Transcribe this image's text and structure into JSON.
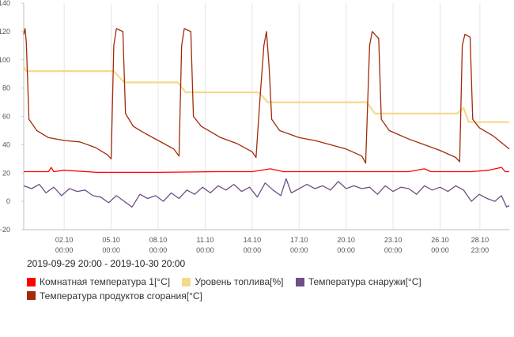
{
  "chart_data": {
    "type": "line",
    "xlabel": "",
    "ylabel": "",
    "ylim": [
      -20,
      140
    ],
    "yticks": [
      -20,
      0,
      20,
      40,
      60,
      80,
      100,
      120,
      140
    ],
    "xlim": [
      "2019-09-29 20:00",
      "2019-10-30 20:00"
    ],
    "xticks": [
      {
        "at": "2019-10-02 10:00",
        "label_top": "02.10",
        "label_bottom": "00:00"
      },
      {
        "at": "2019-10-05 10:00",
        "label_top": "05.10",
        "label_bottom": "00:00"
      },
      {
        "at": "2019-10-08 10:00",
        "label_top": "08.10",
        "label_bottom": "00:00"
      },
      {
        "at": "2019-10-11 10:00",
        "label_top": "11.10",
        "label_bottom": "00:00"
      },
      {
        "at": "2019-10-14 10:00",
        "label_top": "14.10",
        "label_bottom": "00:00"
      },
      {
        "at": "2019-10-17 10:00",
        "label_top": "17.10",
        "label_bottom": "00:00"
      },
      {
        "at": "2019-10-20 10:00",
        "label_top": "20.10",
        "label_bottom": "00:00"
      },
      {
        "at": "2019-10-23 10:00",
        "label_top": "23.10",
        "label_bottom": "00:00"
      },
      {
        "at": "2019-10-26 10:00",
        "label_top": "26.10",
        "label_bottom": "00:00"
      },
      {
        "at": "2019-10-28 23:00",
        "label_top": "28.10",
        "label_bottom": "23:00"
      }
    ],
    "grid": true,
    "legend_position": "bottom",
    "range_label": "2019-09-29 20:00 - 2019-10-30 20:00",
    "series": [
      {
        "name": "Комнатная температура 1[°C]",
        "color": "#ff0000",
        "points": [
          [
            "2019-09-29 20:00",
            21
          ],
          [
            "2019-10-01 10:00",
            21
          ],
          [
            "2019-10-01 14:00",
            24
          ],
          [
            "2019-10-01 18:00",
            21
          ],
          [
            "2019-10-02 10:00",
            22
          ],
          [
            "2019-10-04 12:00",
            20.5
          ],
          [
            "2019-10-08 10:00",
            20.5
          ],
          [
            "2019-10-12 10:00",
            21
          ],
          [
            "2019-10-14 10:00",
            21
          ],
          [
            "2019-10-15 14:00",
            23
          ],
          [
            "2019-10-16 10:00",
            21
          ],
          [
            "2019-10-20 10:00",
            21
          ],
          [
            "2019-10-24 10:00",
            21
          ],
          [
            "2019-10-25 10:00",
            23
          ],
          [
            "2019-10-25 20:00",
            21
          ],
          [
            "2019-10-28 10:00",
            21
          ],
          [
            "2019-10-29 12:00",
            22
          ],
          [
            "2019-10-30 08:00",
            24
          ],
          [
            "2019-10-30 14:00",
            21
          ],
          [
            "2019-10-30 20:00",
            21
          ]
        ]
      },
      {
        "name": "Уровень топлива[%]",
        "color": "#f5d98c",
        "points": [
          [
            "2019-09-29 20:00",
            95
          ],
          [
            "2019-09-30 00:00",
            92
          ],
          [
            "2019-10-05 14:00",
            92
          ],
          [
            "2019-10-06 06:00",
            84
          ],
          [
            "2019-10-09 16:00",
            84
          ],
          [
            "2019-10-10 04:00",
            77
          ],
          [
            "2019-10-14 20:00",
            77
          ],
          [
            "2019-10-15 10:00",
            70
          ],
          [
            "2019-10-21 18:00",
            70
          ],
          [
            "2019-10-22 06:00",
            62
          ],
          [
            "2019-10-27 12:00",
            62
          ],
          [
            "2019-10-27 22:00",
            66
          ],
          [
            "2019-10-28 06:00",
            56
          ],
          [
            "2019-10-30 20:00",
            56
          ]
        ]
      },
      {
        "name": "Температура снаружи[°C]",
        "color": "#6f4f86",
        "points": [
          [
            "2019-09-29 20:00",
            11
          ],
          [
            "2019-09-30 08:00",
            9
          ],
          [
            "2019-09-30 20:00",
            12
          ],
          [
            "2019-10-01 06:00",
            6
          ],
          [
            "2019-10-01 18:00",
            10
          ],
          [
            "2019-10-02 06:00",
            4
          ],
          [
            "2019-10-02 18:00",
            9
          ],
          [
            "2019-10-03 06:00",
            7
          ],
          [
            "2019-10-03 18:00",
            8
          ],
          [
            "2019-10-04 06:00",
            4
          ],
          [
            "2019-10-04 18:00",
            3
          ],
          [
            "2019-10-05 06:00",
            -1
          ],
          [
            "2019-10-05 18:00",
            4
          ],
          [
            "2019-10-06 06:00",
            0
          ],
          [
            "2019-10-06 18:00",
            -4
          ],
          [
            "2019-10-07 06:00",
            5
          ],
          [
            "2019-10-07 18:00",
            2
          ],
          [
            "2019-10-08 06:00",
            4
          ],
          [
            "2019-10-08 18:00",
            0
          ],
          [
            "2019-10-09 06:00",
            6
          ],
          [
            "2019-10-09 18:00",
            2
          ],
          [
            "2019-10-10 06:00",
            8
          ],
          [
            "2019-10-10 18:00",
            5
          ],
          [
            "2019-10-11 06:00",
            10
          ],
          [
            "2019-10-11 18:00",
            6
          ],
          [
            "2019-10-12 06:00",
            11
          ],
          [
            "2019-10-12 18:00",
            8
          ],
          [
            "2019-10-13 06:00",
            12
          ],
          [
            "2019-10-13 18:00",
            7
          ],
          [
            "2019-10-14 06:00",
            10
          ],
          [
            "2019-10-14 18:00",
            3
          ],
          [
            "2019-10-15 06:00",
            13
          ],
          [
            "2019-10-15 18:00",
            8
          ],
          [
            "2019-10-16 06:00",
            4
          ],
          [
            "2019-10-16 14:00",
            16
          ],
          [
            "2019-10-16 22:00",
            6
          ],
          [
            "2019-10-17 10:00",
            9
          ],
          [
            "2019-10-17 22:00",
            12
          ],
          [
            "2019-10-18 10:00",
            9
          ],
          [
            "2019-10-18 22:00",
            11
          ],
          [
            "2019-10-19 10:00",
            8
          ],
          [
            "2019-10-19 22:00",
            14
          ],
          [
            "2019-10-20 10:00",
            9
          ],
          [
            "2019-10-20 22:00",
            11
          ],
          [
            "2019-10-21 10:00",
            9
          ],
          [
            "2019-10-21 22:00",
            10
          ],
          [
            "2019-10-22 10:00",
            5
          ],
          [
            "2019-10-22 22:00",
            11
          ],
          [
            "2019-10-23 10:00",
            7
          ],
          [
            "2019-10-23 22:00",
            10
          ],
          [
            "2019-10-24 10:00",
            9
          ],
          [
            "2019-10-24 22:00",
            5
          ],
          [
            "2019-10-25 10:00",
            11
          ],
          [
            "2019-10-25 22:00",
            8
          ],
          [
            "2019-10-26 10:00",
            10
          ],
          [
            "2019-10-26 22:00",
            7
          ],
          [
            "2019-10-27 10:00",
            11
          ],
          [
            "2019-10-27 22:00",
            8
          ],
          [
            "2019-10-28 10:00",
            0
          ],
          [
            "2019-10-28 22:00",
            5
          ],
          [
            "2019-10-29 10:00",
            2
          ],
          [
            "2019-10-29 22:00",
            0
          ],
          [
            "2019-10-30 08:00",
            4
          ],
          [
            "2019-10-30 16:00",
            -4
          ],
          [
            "2019-10-30 20:00",
            -3
          ]
        ]
      },
      {
        "name": "Температура продуктов сгорания[°C]",
        "color": "#a22a08",
        "points": [
          [
            "2019-09-29 20:00",
            118
          ],
          [
            "2019-09-29 22:00",
            122
          ],
          [
            "2019-09-30 00:00",
            112
          ],
          [
            "2019-09-30 04:00",
            58
          ],
          [
            "2019-09-30 16:00",
            50
          ],
          [
            "2019-10-01 10:00",
            45
          ],
          [
            "2019-10-02 10:00",
            43
          ],
          [
            "2019-10-03 10:00",
            42
          ],
          [
            "2019-10-04 10:00",
            38
          ],
          [
            "2019-10-05 04:00",
            33
          ],
          [
            "2019-10-05 10:00",
            30
          ],
          [
            "2019-10-05 14:00",
            110
          ],
          [
            "2019-10-05 18:00",
            122
          ],
          [
            "2019-10-06 04:00",
            120
          ],
          [
            "2019-10-06 08:00",
            62
          ],
          [
            "2019-10-06 20:00",
            53
          ],
          [
            "2019-10-07 10:00",
            49
          ],
          [
            "2019-10-08 10:00",
            43
          ],
          [
            "2019-10-09 10:00",
            37
          ],
          [
            "2019-10-09 18:00",
            32
          ],
          [
            "2019-10-09 22:00",
            110
          ],
          [
            "2019-10-10 02:00",
            122
          ],
          [
            "2019-10-10 12:00",
            120
          ],
          [
            "2019-10-10 16:00",
            60
          ],
          [
            "2019-10-11 04:00",
            53
          ],
          [
            "2019-10-12 10:00",
            45
          ],
          [
            "2019-10-13 10:00",
            41
          ],
          [
            "2019-10-14 10:00",
            35
          ],
          [
            "2019-10-14 16:00",
            31
          ],
          [
            "2019-10-14 22:00",
            72
          ],
          [
            "2019-10-15 04:00",
            110
          ],
          [
            "2019-10-15 08:00",
            120
          ],
          [
            "2019-10-15 12:00",
            95
          ],
          [
            "2019-10-15 16:00",
            58
          ],
          [
            "2019-10-16 04:00",
            50
          ],
          [
            "2019-10-17 10:00",
            45
          ],
          [
            "2019-10-18 10:00",
            43
          ],
          [
            "2019-10-19 10:00",
            40
          ],
          [
            "2019-10-20 10:00",
            37
          ],
          [
            "2019-10-21 10:00",
            32
          ],
          [
            "2019-10-21 16:00",
            27
          ],
          [
            "2019-10-21 22:00",
            110
          ],
          [
            "2019-10-22 02:00",
            120
          ],
          [
            "2019-10-22 12:00",
            115
          ],
          [
            "2019-10-22 16:00",
            58
          ],
          [
            "2019-10-23 04:00",
            50
          ],
          [
            "2019-10-24 10:00",
            44
          ],
          [
            "2019-10-25 10:00",
            40
          ],
          [
            "2019-10-26 10:00",
            36
          ],
          [
            "2019-10-27 10:00",
            31
          ],
          [
            "2019-10-27 16:00",
            28
          ],
          [
            "2019-10-27 20:00",
            110
          ],
          [
            "2019-10-28 00:00",
            118
          ],
          [
            "2019-10-28 08:00",
            116
          ],
          [
            "2019-10-28 12:00",
            58
          ],
          [
            "2019-10-28 22:00",
            52
          ],
          [
            "2019-10-29 20:00",
            46
          ],
          [
            "2019-10-30 12:00",
            40
          ],
          [
            "2019-10-30 20:00",
            37
          ]
        ]
      }
    ]
  },
  "legend": [
    {
      "label": "Комнатная температура 1[°C]",
      "color": "#ff0000"
    },
    {
      "label": "Уровень топлива[%]",
      "color": "#f5d98c"
    },
    {
      "label": "Температура снаружи[°C]",
      "color": "#6f4f86"
    },
    {
      "label": "Температура продуктов сгорания[°C]",
      "color": "#a22a08"
    }
  ]
}
